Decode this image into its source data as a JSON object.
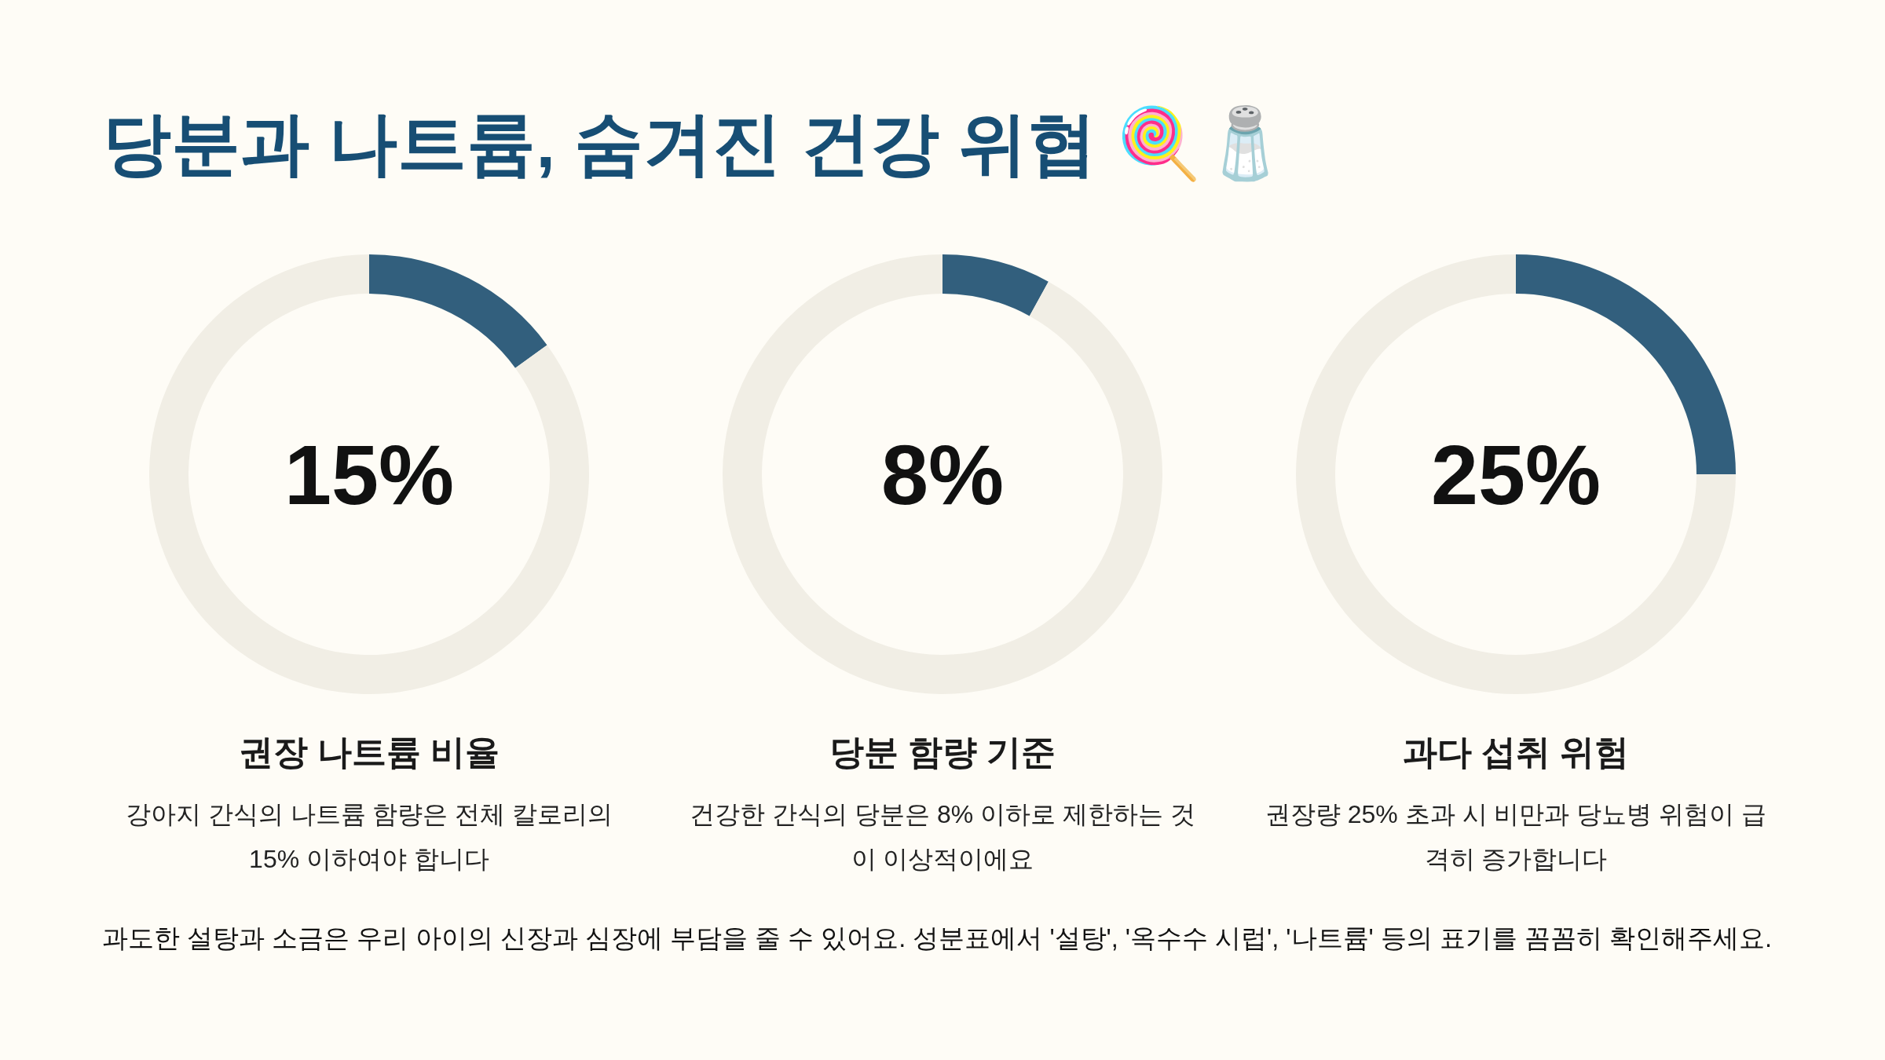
{
  "chart_data": [
    {
      "type": "other",
      "title": "당분과 나트륨, 숨겨진 건강 위협 🍭🧂"
    },
    {
      "type": "donut",
      "title": "권장 나트륨 비율",
      "subtitle": "강아지 간식의 나트륨 함량은 전체 칼로리의 15% 이하여야 합니다",
      "categories": [
        null,
        null
      ],
      "values": [
        15,
        85
      ],
      "colors": [
        "#325f7d",
        "#f1eee5"
      ],
      "annotations": [
        "15%"
      ]
    },
    {
      "type": "donut",
      "title": "당분 함량 기준",
      "subtitle": "건강한 간식의 당분은 8% 이하로 제한하는 것이 이상적이에요",
      "categories": [
        null,
        null
      ],
      "values": [
        8,
        92
      ],
      "colors": [
        "#325f7d",
        "#f1eee5"
      ],
      "annotations": [
        "8%"
      ]
    },
    {
      "type": "donut",
      "title": "과다 섭취 위험",
      "subtitle": "권장량 25% 초과 시 비만과 당뇨병 위험이 급격히 증가합니다",
      "categories": [
        null,
        null
      ],
      "values": [
        25,
        75
      ],
      "colors": [
        "#325f7d",
        "#f1eee5"
      ],
      "annotations": [
        "25%"
      ]
    },
    {
      "type": "other",
      "annotations": [
        "과도한 설탕과 소금은 우리 아이의 신장과 심장에 부담을 줄 수 있어요. 성분표에서 '설탕', '옥수수 시럽', '나트륨' 등의 표기를 꼼꼼히 확인해주세요."
      ]
    }
  ]
}
